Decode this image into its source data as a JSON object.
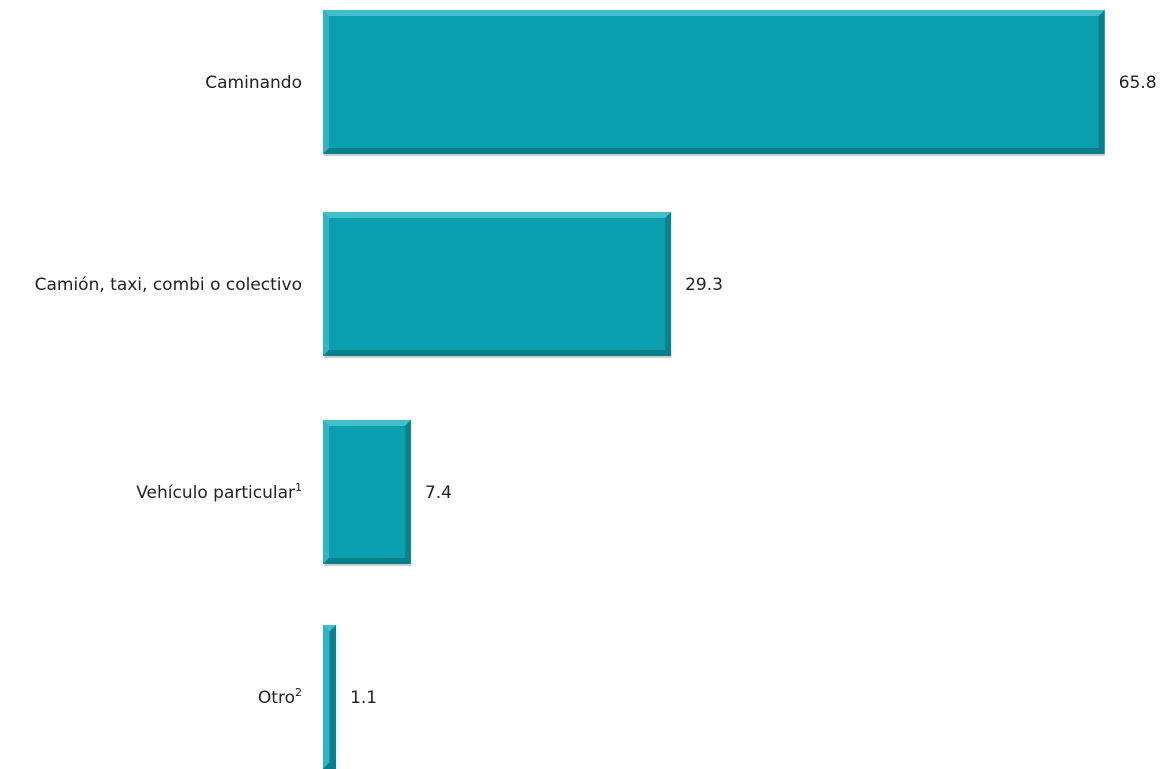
{
  "chart_data": {
    "type": "bar",
    "orientation": "horizontal",
    "categories": [
      {
        "label": "Caminando",
        "sup": ""
      },
      {
        "label": "Camión, taxi, combi o colectivo",
        "sup": ""
      },
      {
        "label": "Vehículo particular",
        "sup": "1"
      },
      {
        "label": "Otro",
        "sup": "2"
      }
    ],
    "values": [
      65.8,
      29.3,
      7.4,
      1.1
    ],
    "value_labels": [
      "65.8",
      "29.3",
      "7.4",
      "1.1"
    ],
    "grid": false,
    "legend": "none",
    "colors": {
      "bar": "#0a9fae",
      "bar_dark": "#067d89",
      "bar_light": "#4cc3cf"
    }
  }
}
